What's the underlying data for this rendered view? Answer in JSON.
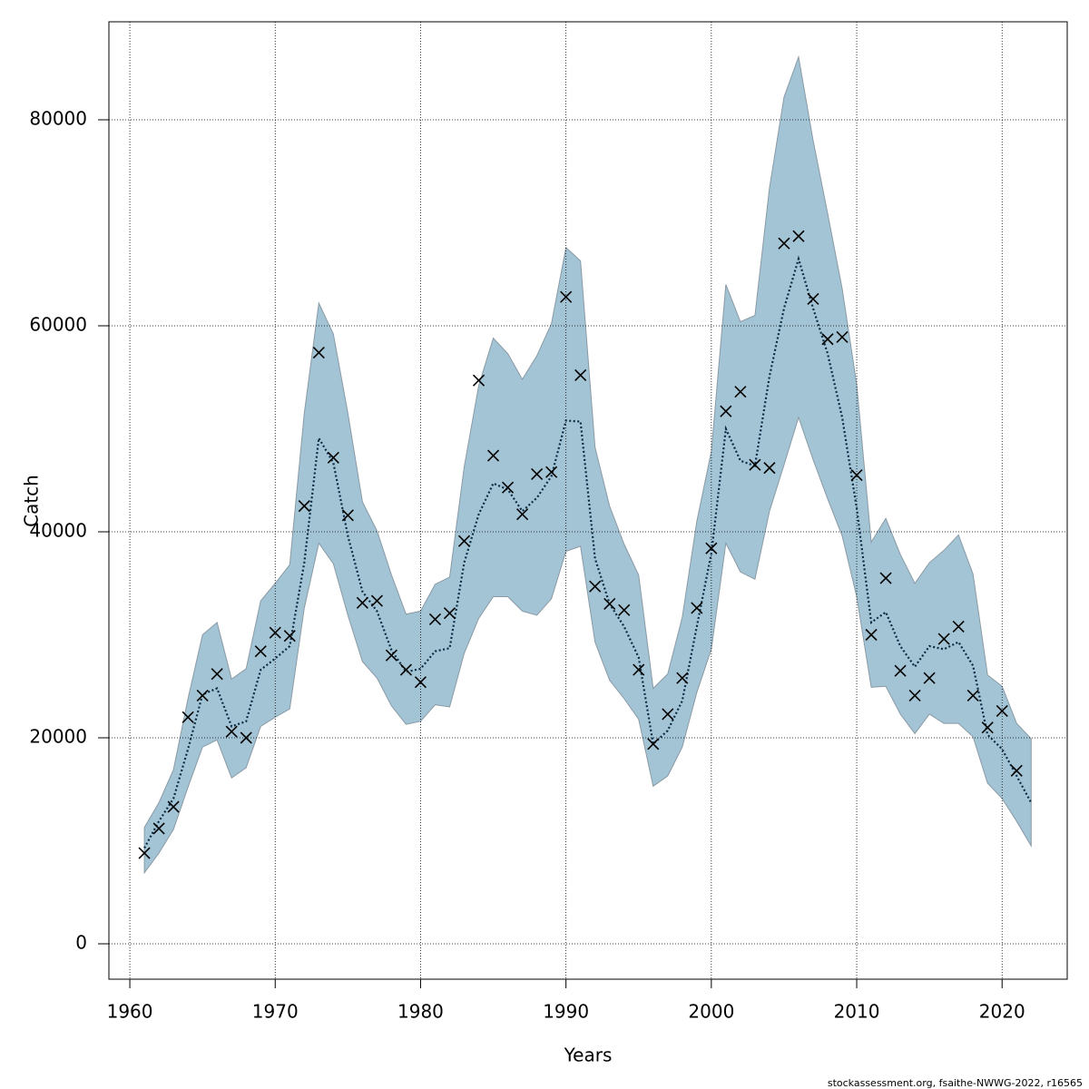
{
  "chart_data": {
    "type": "line",
    "xlabel": "Years",
    "ylabel": "Catch",
    "footer": "stockassessment.org, fsaithe-NWWG-2022, r16565",
    "x": [
      1961,
      1962,
      1963,
      1964,
      1965,
      1966,
      1967,
      1968,
      1969,
      1970,
      1971,
      1972,
      1973,
      1974,
      1975,
      1976,
      1977,
      1978,
      1979,
      1980,
      1981,
      1982,
      1983,
      1984,
      1985,
      1986,
      1987,
      1988,
      1989,
      1990,
      1991,
      1992,
      1993,
      1994,
      1995,
      1996,
      1997,
      1998,
      1999,
      2000,
      2001,
      2002,
      2003,
      2004,
      2005,
      2006,
      2007,
      2008,
      2009,
      2010,
      2011,
      2012,
      2013,
      2014,
      2015,
      2016,
      2017,
      2018,
      2019,
      2020,
      2021,
      2022
    ],
    "observed": [
      8800,
      11200,
      13300,
      22000,
      24100,
      26200,
      20600,
      20000,
      28400,
      30200,
      29900,
      42500,
      57400,
      47200,
      41600,
      33100,
      33300,
      28000,
      26600,
      25400,
      31500,
      32100,
      39100,
      54700,
      47400,
      44300,
      41700,
      45600,
      45800,
      62800,
      55200,
      34700,
      33000,
      32400,
      26600,
      19400,
      22300,
      25800,
      32600,
      38400,
      51700,
      53600,
      46500,
      46200,
      68000,
      68700,
      62600,
      58700,
      58900,
      45500,
      30000,
      35500,
      26500,
      24100,
      25800,
      29600,
      30800,
      24100,
      21000,
      22600,
      16800,
      null
    ],
    "estimate": [
      9300,
      11900,
      14100,
      18900,
      24200,
      24800,
      21100,
      21600,
      26600,
      27700,
      28900,
      37000,
      49100,
      46700,
      39600,
      34200,
      32300,
      28500,
      26400,
      26700,
      28400,
      28700,
      37000,
      41700,
      44700,
      44100,
      42000,
      43300,
      45400,
      50800,
      50700,
      37400,
      33000,
      30800,
      27800,
      19400,
      20700,
      23600,
      30800,
      37900,
      50000,
      46900,
      46400,
      55100,
      61700,
      66500,
      61700,
      57300,
      51100,
      42300,
      31200,
      32200,
      28900,
      26900,
      28900,
      28600,
      29300,
      27000,
      20300,
      18900,
      16300,
      13700
    ],
    "upper": [
      11300,
      13700,
      16900,
      23800,
      30000,
      31200,
      25700,
      26700,
      33300,
      35000,
      36800,
      51500,
      62200,
      59200,
      51500,
      42900,
      40100,
      35800,
      32000,
      32300,
      34900,
      35600,
      46300,
      54200,
      58800,
      57300,
      54800,
      57100,
      60200,
      67600,
      66300,
      48200,
      42500,
      38800,
      35800,
      24800,
      26200,
      31700,
      41000,
      47800,
      64000,
      60400,
      61000,
      73400,
      82200,
      86100,
      78000,
      70900,
      63600,
      54300,
      39000,
      41300,
      37800,
      35000,
      37000,
      38200,
      39700,
      35900,
      26100,
      25000,
      21400,
      19900
    ],
    "lower": [
      6900,
      8800,
      11100,
      15200,
      19100,
      19800,
      16100,
      17100,
      21100,
      22000,
      22800,
      32600,
      38900,
      36900,
      31900,
      27400,
      25800,
      23100,
      21300,
      21600,
      23200,
      23000,
      28200,
      31600,
      33700,
      33700,
      32300,
      31900,
      33500,
      38100,
      38600,
      29300,
      25600,
      23800,
      21800,
      15300,
      16300,
      19100,
      24400,
      28600,
      38900,
      36100,
      35400,
      42000,
      46500,
      51100,
      47000,
      43200,
      39600,
      33700,
      24900,
      25000,
      22300,
      20400,
      22300,
      21400,
      21400,
      20100,
      15600,
      14100,
      11900,
      9500
    ],
    "band_color": "#a3c4d5",
    "line_color": "#0a2a44",
    "marker_color": "#000000",
    "xlim": [
      1958.56,
      2024.48
    ],
    "ylim": [
      -3436,
      89515
    ],
    "xticks": [
      1960,
      1970,
      1980,
      1990,
      2000,
      2010,
      2020
    ],
    "yticks": [
      0,
      20000,
      40000,
      60000,
      80000
    ],
    "grid": true
  }
}
